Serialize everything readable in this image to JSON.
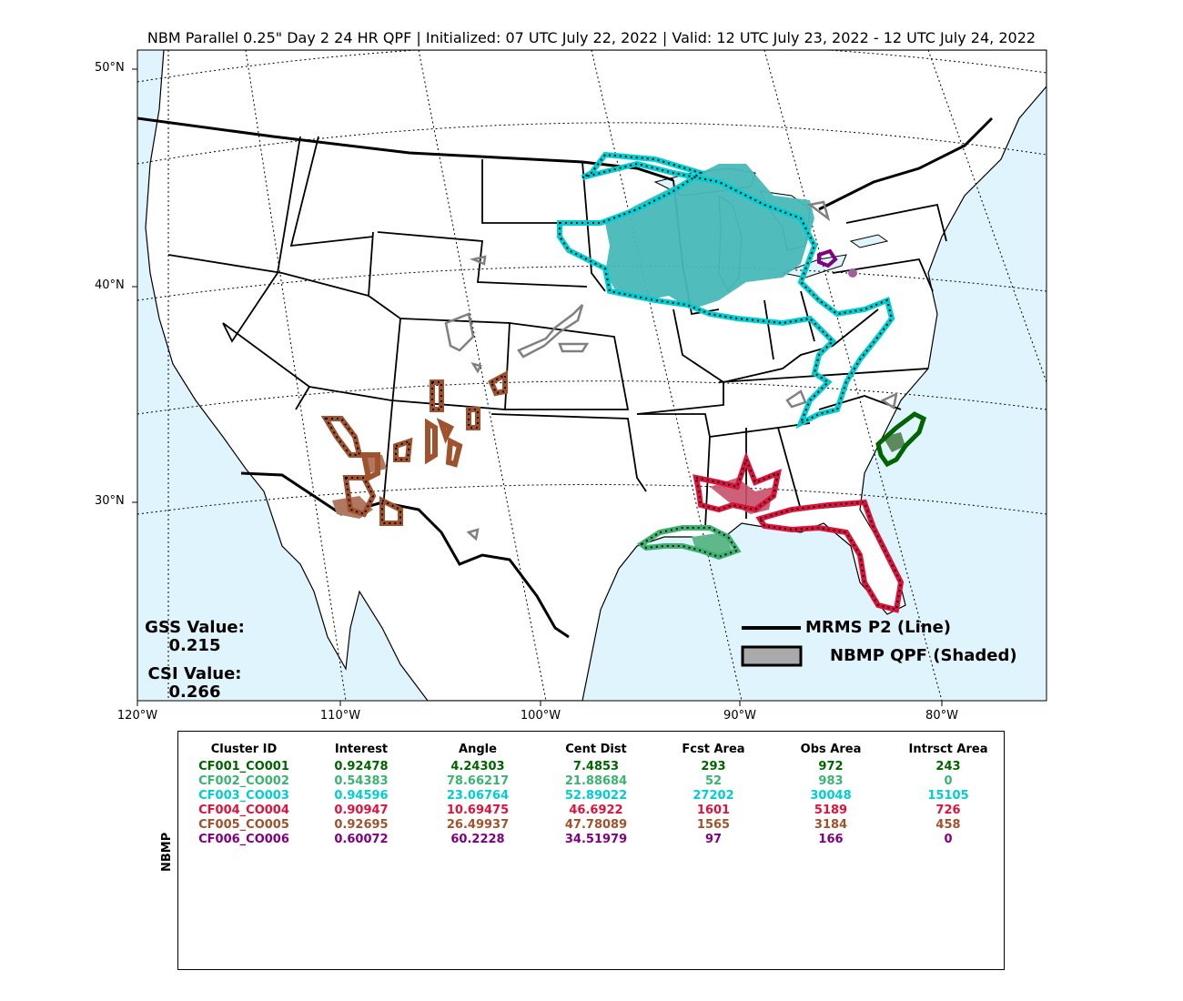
{
  "title": "NBM Parallel 0.25\" Day 2 24 HR QPF | Initialized: 07 UTC July 22, 2022 | Valid: 12 UTC July 23, 2022 - 12 UTC July 24, 2022",
  "map": {
    "lat_labels": [
      "50°N",
      "40°N",
      "30°N"
    ],
    "lon_labels": [
      "120°W",
      "110°W",
      "100°W",
      "90°W",
      "80°W"
    ],
    "ocean_color": "#dff4fd",
    "land_color": "#ffffff"
  },
  "stats": {
    "gss_label": "GSS Value:",
    "gss_value": "0.215",
    "csi_label": "CSI Value:",
    "csi_value": "0.266"
  },
  "legend": {
    "line_label": "MRMS P2 (Line)",
    "shaded_label": "NBMP QPF (Shaded)"
  },
  "table": {
    "side_label": "NBMP",
    "columns": [
      "Cluster ID",
      "Interest",
      "Angle",
      "Cent Dist",
      "Fcst Area",
      "Obs Area",
      "Intrsct Area"
    ],
    "rows": [
      {
        "cells": [
          "CF001_CO001",
          "0.92478",
          "4.24303",
          "7.4853",
          "293",
          "972",
          "243"
        ],
        "color": "#006400"
      },
      {
        "cells": [
          "CF002_CO002",
          "0.54383",
          "78.66217",
          "21.88684",
          "52",
          "983",
          "0"
        ],
        "color": "#3cb371"
      },
      {
        "cells": [
          "CF003_CO003",
          "0.94596",
          "23.06764",
          "52.89022",
          "27202",
          "30048",
          "15105"
        ],
        "color": "#00ced1"
      },
      {
        "cells": [
          "CF004_CO004",
          "0.90947",
          "10.69475",
          "46.6922",
          "1601",
          "5189",
          "726"
        ],
        "color": "#dc143c"
      },
      {
        "cells": [
          "CF005_CO005",
          "0.92695",
          "26.49937",
          "47.78089",
          "1565",
          "3184",
          "458"
        ],
        "color": "#a0522d"
      },
      {
        "cells": [
          "CF006_CO006",
          "0.60072",
          "60.2228",
          "34.51979",
          "97",
          "166",
          "0"
        ],
        "color": "#800080"
      }
    ]
  },
  "clusters": [
    {
      "id": "CF001_CO001",
      "color": "#006400",
      "region": "North Carolina coast"
    },
    {
      "id": "CF002_CO002",
      "color": "#3cb371",
      "region": "Louisiana coast"
    },
    {
      "id": "CF003_CO003",
      "color": "#00ced1",
      "region": "Upper Midwest / Great Lakes / Ohio Valley"
    },
    {
      "id": "CF004_CO004",
      "color": "#dc143c",
      "region": "Gulf Coast / Florida"
    },
    {
      "id": "CF005_CO005",
      "color": "#a0522d",
      "region": "Arizona / New Mexico"
    },
    {
      "id": "CF006_CO006",
      "color": "#800080",
      "region": "Lower Michigan"
    }
  ]
}
